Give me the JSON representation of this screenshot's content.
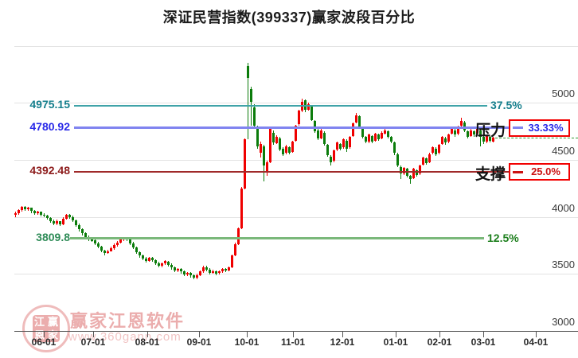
{
  "title": "深证民营指数(399337)赢家波段百分比",
  "y_axis": {
    "tick_labels": [
      "5000",
      "4500",
      "4000",
      "3500",
      "3000"
    ],
    "tick_values": [
      5000,
      4500,
      4000,
      3500,
      3000
    ],
    "grid_values": [
      5500,
      5000,
      4500,
      4000,
      3500
    ]
  },
  "x_axis": {
    "tick_labels": [
      "06-01",
      "07-01",
      "08-01",
      "09-01",
      "10-01",
      "11-01",
      "12-01",
      "01-01",
      "02-01",
      "03-01",
      "04-01"
    ]
  },
  "levels": {
    "l375": {
      "value_label": "4975.15",
      "value": 4975.15,
      "pct_label": "37.5%",
      "text_color": "#157f8d",
      "pct_color": "#157f8d",
      "line_color": "#3fa3a8",
      "boxed": false
    },
    "l3333": {
      "value_label": "4780.92",
      "value": 4780.92,
      "pct_label": "33.33%",
      "role_label": "压力",
      "text_color": "#2929e8",
      "pct_color": "#2929e8",
      "line_color": "#8084f0",
      "boxed": true,
      "box_border": "#f20000"
    },
    "l25": {
      "value_label": "4392.48",
      "value": 4392.48,
      "pct_label": "25.0%",
      "role_label": "支撑",
      "text_color": "#8c1a1a",
      "pct_color": "#cc1111",
      "line_color": "#a02a2a",
      "boxed": true,
      "box_border": "#f20000"
    },
    "l125": {
      "value_label": "3809.8",
      "value": 3809.8,
      "pct_label": "12.5%",
      "text_color": "#2e8b57",
      "pct_color": "#1d7f1d",
      "line_color": "#7ab87a",
      "boxed": false
    }
  },
  "watermark": {
    "brand": "赢家江恩软件",
    "site": "www.360gann.com",
    "seal": [
      "江",
      "赢",
      "恩",
      "家"
    ]
  },
  "chart_data": {
    "type": "candlestick",
    "title": "深证民营指数(399337)赢家波段百分比",
    "ylabel": "",
    "y_range": [
      3000,
      5500
    ],
    "grid": true,
    "x_tick_labels": [
      "06-01",
      "07-01",
      "08-01",
      "09-01",
      "10-01",
      "11-01",
      "12-01",
      "01-01",
      "02-01",
      "03-01",
      "04-01"
    ],
    "up_color": "#ef0000",
    "down_color": "#0b7c0b",
    "last_price": 4693,
    "last_price_line_style": "dashed-green",
    "horizontal_levels": [
      {
        "pct": "37.5%",
        "value": 4975.15,
        "role": ""
      },
      {
        "pct": "33.33%",
        "value": 4780.92,
        "role": "压力"
      },
      {
        "pct": "25.0%",
        "value": 4392.48,
        "role": "支撑"
      },
      {
        "pct": "12.5%",
        "value": 3809.8,
        "role": ""
      }
    ],
    "candles": [
      [
        4015,
        4045,
        3995,
        4030
      ],
      [
        4030,
        4070,
        4020,
        4060
      ],
      [
        4060,
        4095,
        4045,
        4085
      ],
      [
        4085,
        4095,
        4055,
        4070
      ],
      [
        4070,
        4090,
        4050,
        4080
      ],
      [
        4080,
        4085,
        4035,
        4050
      ],
      [
        4050,
        4060,
        4015,
        4030
      ],
      [
        4030,
        4055,
        4020,
        4045
      ],
      [
        4045,
        4050,
        4005,
        4020
      ],
      [
        4020,
        4035,
        3995,
        4010
      ],
      [
        4010,
        4020,
        3975,
        3990
      ],
      [
        3990,
        4000,
        3950,
        3965
      ],
      [
        3965,
        3975,
        3925,
        3940
      ],
      [
        3940,
        3975,
        3930,
        3960
      ],
      [
        3960,
        3965,
        3920,
        3935
      ],
      [
        3935,
        3995,
        3930,
        3985
      ],
      [
        3985,
        4025,
        3975,
        4015
      ],
      [
        4015,
        4025,
        3985,
        4000
      ],
      [
        4000,
        4010,
        3955,
        3970
      ],
      [
        3970,
        3980,
        3915,
        3930
      ],
      [
        3930,
        3940,
        3875,
        3890
      ],
      [
        3890,
        3900,
        3840,
        3855
      ],
      [
        3855,
        3865,
        3810,
        3825
      ],
      [
        3825,
        3835,
        3785,
        3800
      ],
      [
        3800,
        3820,
        3780,
        3795
      ],
      [
        3795,
        3800,
        3755,
        3770
      ],
      [
        3770,
        3780,
        3725,
        3740
      ],
      [
        3740,
        3750,
        3690,
        3705
      ],
      [
        3705,
        3715,
        3665,
        3685
      ],
      [
        3685,
        3715,
        3675,
        3700
      ],
      [
        3700,
        3740,
        3695,
        3725
      ],
      [
        3725,
        3765,
        3715,
        3750
      ],
      [
        3750,
        3790,
        3740,
        3775
      ],
      [
        3775,
        3810,
        3765,
        3800
      ],
      [
        3800,
        3825,
        3790,
        3815
      ],
      [
        3815,
        3825,
        3790,
        3805
      ],
      [
        3805,
        3810,
        3755,
        3770
      ],
      [
        3770,
        3780,
        3715,
        3730
      ],
      [
        3730,
        3740,
        3675,
        3690
      ],
      [
        3690,
        3700,
        3645,
        3660
      ],
      [
        3660,
        3670,
        3620,
        3635
      ],
      [
        3635,
        3650,
        3600,
        3615
      ],
      [
        3615,
        3650,
        3605,
        3640
      ],
      [
        3640,
        3650,
        3605,
        3620
      ],
      [
        3620,
        3630,
        3580,
        3595
      ],
      [
        3595,
        3605,
        3555,
        3570
      ],
      [
        3570,
        3600,
        3560,
        3590
      ],
      [
        3590,
        3620,
        3580,
        3610
      ],
      [
        3610,
        3615,
        3565,
        3580
      ],
      [
        3580,
        3590,
        3540,
        3555
      ],
      [
        3555,
        3565,
        3515,
        3530
      ],
      [
        3530,
        3555,
        3520,
        3545
      ],
      [
        3545,
        3550,
        3505,
        3520
      ],
      [
        3520,
        3530,
        3480,
        3495
      ],
      [
        3495,
        3520,
        3485,
        3510
      ],
      [
        3510,
        3515,
        3470,
        3485
      ],
      [
        3485,
        3495,
        3450,
        3465
      ],
      [
        3465,
        3500,
        3455,
        3490
      ],
      [
        3490,
        3530,
        3480,
        3520
      ],
      [
        3520,
        3570,
        3510,
        3560
      ],
      [
        3560,
        3570,
        3525,
        3540
      ],
      [
        3540,
        3550,
        3495,
        3510
      ],
      [
        3510,
        3535,
        3500,
        3525
      ],
      [
        3525,
        3530,
        3490,
        3505
      ],
      [
        3505,
        3530,
        3495,
        3520
      ],
      [
        3520,
        3555,
        3510,
        3545
      ],
      [
        3545,
        3550,
        3515,
        3530
      ],
      [
        3530,
        3565,
        3520,
        3555
      ],
      [
        3555,
        3670,
        3550,
        3660
      ],
      [
        3660,
        3775,
        3655,
        3760
      ],
      [
        3760,
        3910,
        3755,
        3900
      ],
      [
        3900,
        4260,
        3895,
        4250
      ],
      [
        4250,
        4690,
        4245,
        4680
      ],
      [
        5320,
        5350,
        4680,
        5220
      ],
      [
        5120,
        5140,
        4800,
        5010
      ],
      [
        4960,
        4990,
        4780,
        4800
      ],
      [
        4790,
        4800,
        4600,
        4620
      ],
      [
        4560,
        4660,
        4520,
        4640
      ],
      [
        4620,
        4630,
        4310,
        4450
      ],
      [
        4390,
        4490,
        4360,
        4480
      ],
      [
        4480,
        4780,
        4470,
        4770
      ],
      [
        4740,
        4760,
        4630,
        4650
      ],
      [
        4650,
        4720,
        4640,
        4700
      ],
      [
        4690,
        4700,
        4575,
        4590
      ],
      [
        4600,
        4610,
        4535,
        4550
      ],
      [
        4560,
        4635,
        4550,
        4620
      ],
      [
        4610,
        4620,
        4545,
        4560
      ],
      [
        4570,
        4670,
        4560,
        4660
      ],
      [
        4670,
        4810,
        4660,
        4800
      ],
      [
        4810,
        4940,
        4800,
        4930
      ],
      [
        4930,
        5040,
        4920,
        5010
      ],
      [
        5020,
        5030,
        4920,
        4940
      ],
      [
        4940,
        5000,
        4930,
        4990
      ],
      [
        4970,
        4980,
        4840,
        4850
      ],
      [
        4840,
        4850,
        4735,
        4750
      ],
      [
        4760,
        4770,
        4675,
        4690
      ],
      [
        4690,
        4770,
        4680,
        4760
      ],
      [
        4740,
        4750,
        4625,
        4640
      ],
      [
        4630,
        4640,
        4525,
        4540
      ],
      [
        4530,
        4540,
        4450,
        4480
      ],
      [
        4490,
        4590,
        4480,
        4580
      ],
      [
        4590,
        4660,
        4580,
        4650
      ],
      [
        4640,
        4650,
        4585,
        4600
      ],
      [
        4610,
        4690,
        4600,
        4680
      ],
      [
        4670,
        4680,
        4570,
        4600
      ],
      [
        4610,
        4710,
        4600,
        4700
      ],
      [
        4710,
        4830,
        4700,
        4820
      ],
      [
        4830,
        4910,
        4820,
        4890
      ],
      [
        4880,
        4890,
        4770,
        4780
      ],
      [
        4770,
        4780,
        4685,
        4700
      ],
      [
        4700,
        4710,
        4645,
        4660
      ],
      [
        4660,
        4730,
        4650,
        4720
      ],
      [
        4710,
        4720,
        4645,
        4660
      ],
      [
        4670,
        4740,
        4660,
        4730
      ],
      [
        4720,
        4730,
        4665,
        4680
      ],
      [
        4690,
        4750,
        4680,
        4740
      ],
      [
        4730,
        4770,
        4720,
        4760
      ],
      [
        4750,
        4760,
        4685,
        4700
      ],
      [
        4700,
        4710,
        4645,
        4660
      ],
      [
        4650,
        4660,
        4545,
        4560
      ],
      [
        4550,
        4560,
        4435,
        4450
      ],
      [
        4440,
        4450,
        4330,
        4380
      ],
      [
        4380,
        4440,
        4370,
        4430
      ],
      [
        4420,
        4430,
        4345,
        4360
      ],
      [
        4360,
        4370,
        4290,
        4330
      ],
      [
        4340,
        4430,
        4330,
        4420
      ],
      [
        4410,
        4420,
        4355,
        4370
      ],
      [
        4380,
        4460,
        4370,
        4450
      ],
      [
        4460,
        4530,
        4450,
        4520
      ],
      [
        4510,
        4520,
        4455,
        4470
      ],
      [
        4480,
        4560,
        4470,
        4550
      ],
      [
        4560,
        4620,
        4550,
        4610
      ],
      [
        4600,
        4610,
        4535,
        4550
      ],
      [
        4560,
        4640,
        4550,
        4630
      ],
      [
        4640,
        4710,
        4630,
        4700
      ],
      [
        4690,
        4700,
        4635,
        4650
      ],
      [
        4660,
        4730,
        4650,
        4720
      ],
      [
        4730,
        4780,
        4720,
        4770
      ],
      [
        4760,
        4770,
        4705,
        4720
      ],
      [
        4730,
        4800,
        4720,
        4790
      ],
      [
        4800,
        4870,
        4790,
        4840
      ],
      [
        4830,
        4840,
        4745,
        4760
      ],
      [
        4750,
        4760,
        4685,
        4700
      ],
      [
        4710,
        4770,
        4700,
        4760
      ],
      [
        4750,
        4760,
        4705,
        4720
      ],
      [
        4730,
        4780,
        4720,
        4770
      ],
      [
        4760,
        4770,
        4620,
        4700
      ],
      [
        4700,
        4710,
        4640,
        4660
      ],
      [
        4660,
        4720,
        4650,
        4710
      ],
      [
        4700,
        4710,
        4650,
        4670
      ],
      [
        4660,
        4700,
        4650,
        4693
      ]
    ]
  }
}
